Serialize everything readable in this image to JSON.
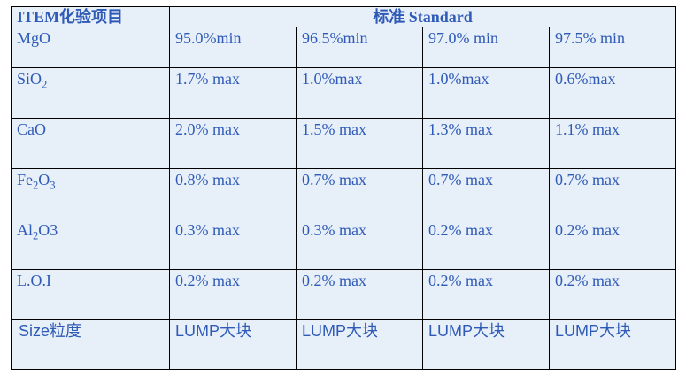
{
  "header": {
    "item": "ITEM化验项目",
    "standard": "标准 Standard"
  },
  "rows": [
    {
      "item": "MgO",
      "values": [
        "95.0%min",
        "96.5%min",
        "97.0% min",
        "97.5% min"
      ]
    },
    {
      "item_main": "SiO",
      "item_sub": "2",
      "values": [
        "1.7% max",
        "1.0%max",
        "1.0%max",
        "0.6%max"
      ]
    },
    {
      "item": "CaO",
      "values": [
        "2.0% max",
        "1.5% max",
        "1.3% max",
        "1.1% max"
      ]
    },
    {
      "item_a": "Fe",
      "item_sub1": "2",
      "item_b": "O",
      "item_sub2": "3",
      "values": [
        "0.8% max",
        "0.7% max",
        "0.7% max",
        "0.7% max"
      ]
    },
    {
      "item_a": "Al",
      "item_sub1": "2",
      "item_b": "O3",
      "values": [
        "0.3% max",
        "0.3% max",
        "0.2% max",
        "0.2% max"
      ]
    },
    {
      "item": "L.O.I",
      "values": [
        "0.2% max",
        "0.2% max",
        "0.2% max",
        "0.2% max"
      ]
    },
    {
      "item": "Size粒度",
      "values": [
        "LUMP大块",
        "LUMP大块",
        "LUMP大块",
        "LUMP大块"
      ]
    }
  ]
}
